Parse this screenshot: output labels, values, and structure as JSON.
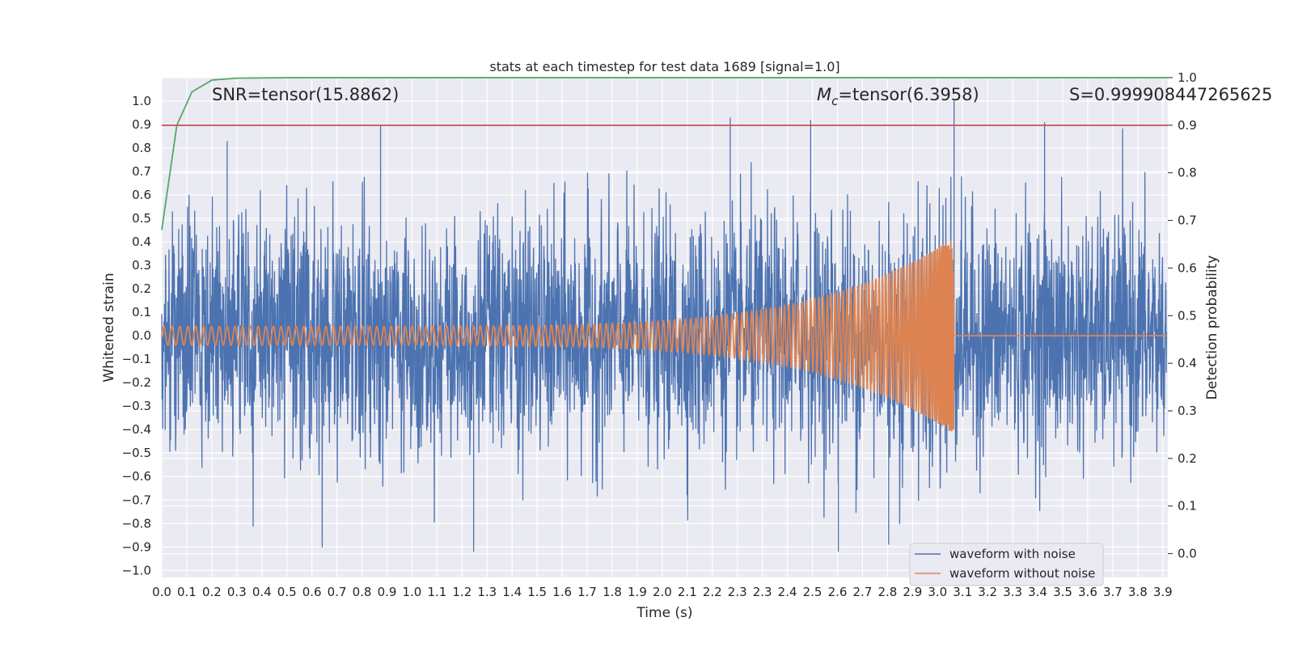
{
  "chart_data": {
    "type": "line",
    "title": "stats at each timestep for test data 1689 [signal=1.0]",
    "xlabel": "Time (s)",
    "ylabel": "Whitened strain",
    "y2label": "Detection probability",
    "xlim": [
      0.0,
      4.0
    ],
    "ylim": [
      -1.03,
      1.1
    ],
    "y2lim": [
      -0.05,
      1.0
    ],
    "grid": true,
    "xticks": [
      "0.0",
      "0.1",
      "0.2",
      "0.3",
      "0.4",
      "0.5",
      "0.6",
      "0.7",
      "0.8",
      "0.9",
      "1.0",
      "1.1",
      "1.2",
      "1.3",
      "1.4",
      "1.5",
      "1.6",
      "1.7",
      "1.8",
      "1.9",
      "2.0",
      "2.1",
      "2.2",
      "2.3",
      "2.3",
      "2.4",
      "2.5",
      "2.6",
      "2.7",
      "2.8",
      "2.9",
      "3.0",
      "3.1",
      "3.2",
      "3.3",
      "3.4",
      "3.5",
      "3.6",
      "3.7",
      "3.8",
      "3.9"
    ],
    "yticks": [
      "1.0",
      "0.9",
      "0.8",
      "0.7",
      "0.6",
      "0.5",
      "0.4",
      "0.3",
      "0.2",
      "0.1",
      "0.0",
      "−0.1",
      "−0.2",
      "−0.3",
      "−0.4",
      "−0.5",
      "−0.6",
      "−0.7",
      "−0.8",
      "−0.9",
      "−1.0"
    ],
    "y2ticks": [
      "1.0",
      "0.9",
      "0.8",
      "0.7",
      "0.6",
      "0.5",
      "0.4",
      "0.3",
      "0.2",
      "0.1",
      "0.0"
    ],
    "annotations": {
      "snr": "SNR=tensor(15.8862)",
      "mc_symbol": "M",
      "mc_sub": "c",
      "mc_value": "=tensor(6.3958)",
      "s": "S=0.999908447265625"
    },
    "legend": {
      "position": "lower-right",
      "entries": [
        {
          "label": "waveform with noise",
          "color": "#4c72b0"
        },
        {
          "label": "waveform without noise",
          "color": "#dd8452"
        }
      ]
    },
    "series": [
      {
        "name": "waveform with noise",
        "color": "#4c72b0",
        "axis": "left",
        "description_values": {
          "peak_time": 3.15,
          "peak_value": 1.0,
          "noise_amplitude": 0.45
        },
        "notable_peaks": [
          {
            "x": 0.26,
            "y": 0.83
          },
          {
            "x": 0.87,
            "y": 0.9
          },
          {
            "x": 2.26,
            "y": 0.93
          },
          {
            "x": 2.58,
            "y": 0.92
          },
          {
            "x": 3.15,
            "y": 1.0
          },
          {
            "x": 3.51,
            "y": 0.91
          },
          {
            "x": 1.24,
            "y": -0.92
          },
          {
            "x": 2.69,
            "y": -0.92
          },
          {
            "x": 2.89,
            "y": -0.89
          }
        ]
      },
      {
        "name": "waveform without noise",
        "color": "#dd8452",
        "axis": "left",
        "chirp": {
          "start_amplitude": 0.04,
          "peak_amplitude": 0.42,
          "merger_time": 3.15,
          "post_merger_value": 0.0
        }
      },
      {
        "name": "detection probability",
        "color": "#55a868",
        "axis": "right",
        "x": [
          0.0,
          0.06,
          0.12,
          0.2,
          0.3,
          0.5,
          1.0,
          2.0,
          3.0,
          4.0
        ],
        "values": [
          0.68,
          0.9,
          0.97,
          0.995,
          0.999,
          0.9999,
          0.9999,
          0.9999,
          0.9999,
          0.9999
        ]
      },
      {
        "name": "threshold",
        "color": "#c44e52",
        "axis": "right",
        "x": [
          0.0,
          4.0
        ],
        "values": [
          0.9,
          0.9
        ]
      }
    ]
  }
}
